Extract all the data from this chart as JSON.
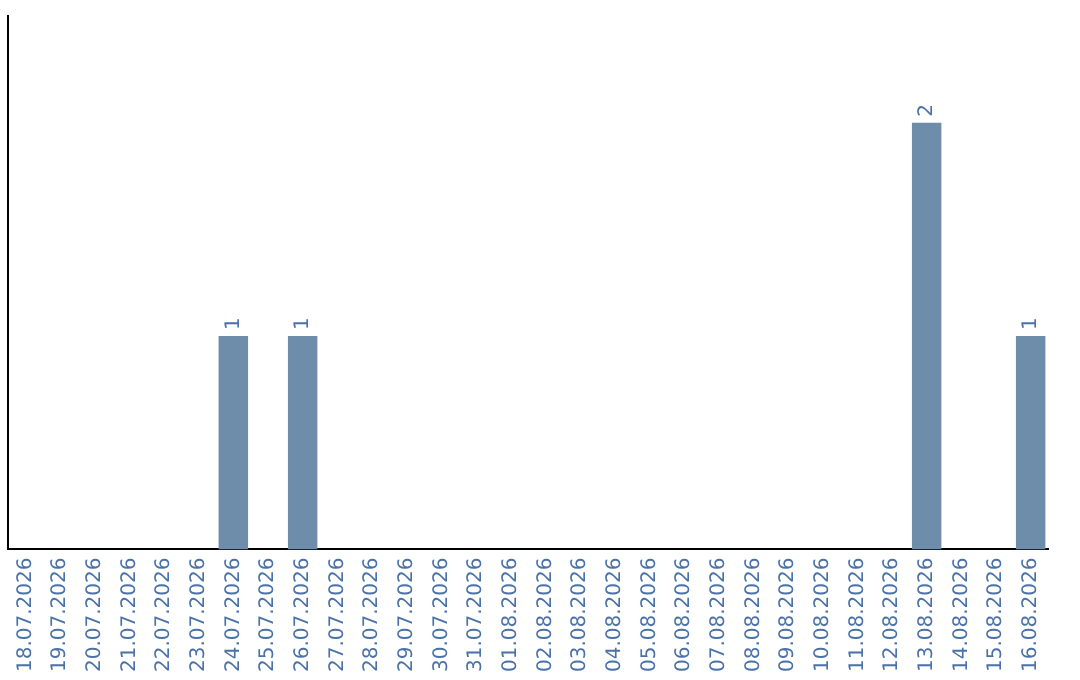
{
  "chart_data": {
    "type": "bar",
    "categories": [
      "18.07.2026",
      "19.07.2026",
      "20.07.2026",
      "21.07.2026",
      "22.07.2026",
      "23.07.2026",
      "24.07.2026",
      "25.07.2026",
      "26.07.2026",
      "27.07.2026",
      "28.07.2026",
      "29.07.2026",
      "30.07.2026",
      "31.07.2026",
      "01.08.2026",
      "02.08.2026",
      "03.08.2026",
      "04.08.2026",
      "05.08.2026",
      "06.08.2026",
      "07.08.2026",
      "08.08.2026",
      "09.08.2026",
      "10.08.2026",
      "11.08.2026",
      "12.08.2026",
      "13.08.2026",
      "14.08.2026",
      "15.08.2026",
      "16.08.2026"
    ],
    "values": [
      0,
      0,
      0,
      0,
      0,
      0,
      1,
      0,
      1,
      0,
      0,
      0,
      0,
      0,
      0,
      0,
      0,
      0,
      0,
      0,
      0,
      0,
      0,
      0,
      0,
      0,
      2,
      0,
      0,
      1
    ],
    "value_labels": [
      null,
      null,
      null,
      null,
      null,
      null,
      "1",
      null,
      "1",
      null,
      null,
      null,
      null,
      null,
      null,
      null,
      null,
      null,
      null,
      null,
      null,
      null,
      null,
      null,
      null,
      null,
      "2",
      null,
      null,
      "1"
    ],
    "color": "#6e8dab",
    "grid": false,
    "legend": false,
    "tick_labels": "x"
  }
}
